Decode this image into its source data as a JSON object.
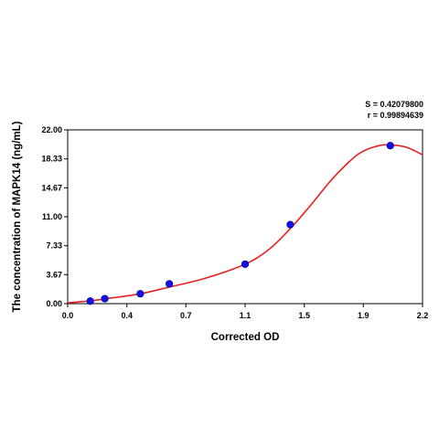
{
  "chart_data": {
    "type": "scatter",
    "xlabel": "Corrected OD",
    "ylabel": "The concentration of MAPK14 (ng/mL)",
    "xlim": [
      0.0,
      2.2
    ],
    "ylim": [
      0.0,
      22.0
    ],
    "x_ticks": [
      "0.0",
      "0.4",
      "0.7",
      "1.1",
      "1.5",
      "1.9",
      "2.2"
    ],
    "x_tick_values": [
      0.0,
      0.367,
      0.733,
      1.1,
      1.467,
      1.833,
      2.2
    ],
    "y_ticks": [
      "0.00",
      "3.67",
      "7.33",
      "11.00",
      "14.67",
      "18.33",
      "22.00"
    ],
    "y_tick_values": [
      0.0,
      3.67,
      7.33,
      11.0,
      14.67,
      18.33,
      22.0
    ],
    "grid": false,
    "points": [
      {
        "x": 0.14,
        "y": 0.32
      },
      {
        "x": 0.23,
        "y": 0.63
      },
      {
        "x": 0.45,
        "y": 1.25
      },
      {
        "x": 0.63,
        "y": 2.5
      },
      {
        "x": 1.1,
        "y": 5.0
      },
      {
        "x": 1.38,
        "y": 10.0
      },
      {
        "x": 2.0,
        "y": 20.0
      }
    ],
    "fit_curve": [
      {
        "x": 0.0,
        "y": 0.1
      },
      {
        "x": 0.14,
        "y": 0.35
      },
      {
        "x": 0.23,
        "y": 0.6
      },
      {
        "x": 0.45,
        "y": 1.25
      },
      {
        "x": 0.63,
        "y": 2.1
      },
      {
        "x": 0.85,
        "y": 3.2
      },
      {
        "x": 1.1,
        "y": 5.0
      },
      {
        "x": 1.25,
        "y": 6.9
      },
      {
        "x": 1.38,
        "y": 9.5
      },
      {
        "x": 1.5,
        "y": 12.3
      },
      {
        "x": 1.65,
        "y": 16.0
      },
      {
        "x": 1.8,
        "y": 18.9
      },
      {
        "x": 1.92,
        "y": 19.95
      },
      {
        "x": 2.0,
        "y": 20.1
      },
      {
        "x": 2.1,
        "y": 19.8
      },
      {
        "x": 2.2,
        "y": 18.85
      }
    ],
    "point_color": "#1010ee",
    "curve_color": "#e82020",
    "stats": {
      "s": "S = 0.42079800",
      "r": "r = 0.99894639"
    }
  }
}
